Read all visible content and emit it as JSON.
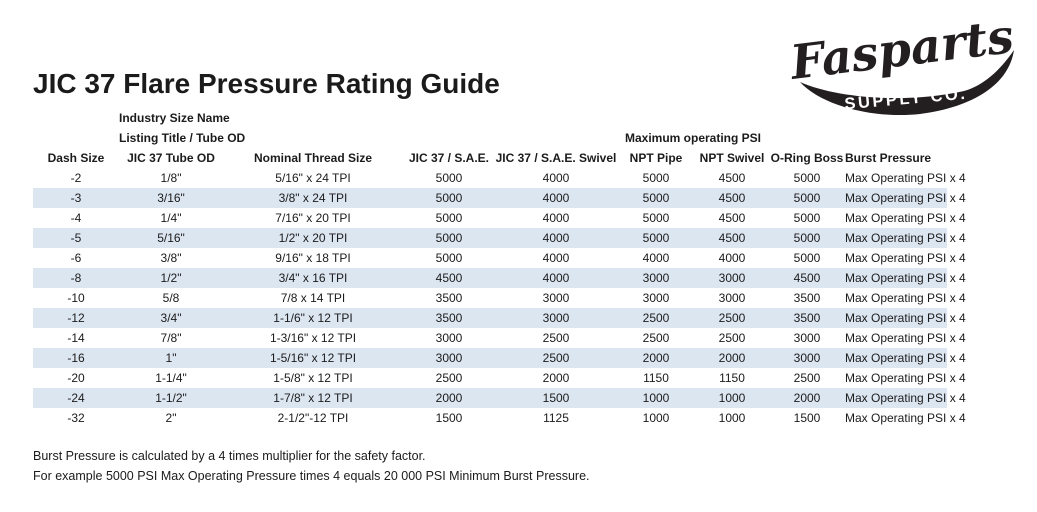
{
  "page": {
    "title": "JIC 37 Flare Pressure Rating Guide"
  },
  "logo": {
    "brand": "Fasparts",
    "subtitle": "SUPPLY CO."
  },
  "table": {
    "group_header_line1": "Industry Size Name",
    "group_header_line2": "Listing Title / Tube OD",
    "psi_group_header": "Maximum operating PSI",
    "columns": [
      "Dash Size",
      "JIC 37 Tube OD",
      "Nominal Thread Size",
      "JIC 37 / S.A.E.",
      "JIC 37 / S.A.E. Swivel",
      "NPT Pipe",
      "NPT Swivel",
      "O-Ring Boss",
      "Burst Pressure"
    ],
    "rows": [
      [
        "-2",
        "1/8\"",
        "5/16\" x 24 TPI",
        "5000",
        "4000",
        "5000",
        "4500",
        "5000",
        "Max Operating PSI x 4"
      ],
      [
        "-3",
        "3/16\"",
        "3/8\" x 24 TPI",
        "5000",
        "4000",
        "5000",
        "4500",
        "5000",
        "Max Operating PSI x 4"
      ],
      [
        "-4",
        "1/4\"",
        "7/16\" x 20 TPI",
        "5000",
        "4000",
        "5000",
        "4500",
        "5000",
        "Max Operating PSI x 4"
      ],
      [
        "-5",
        "5/16\"",
        "1/2\" x 20 TPI",
        "5000",
        "4000",
        "5000",
        "4500",
        "5000",
        "Max Operating PSI x 4"
      ],
      [
        "-6",
        "3/8\"",
        "9/16\" x 18 TPI",
        "5000",
        "4000",
        "4000",
        "4000",
        "5000",
        "Max Operating PSI x 4"
      ],
      [
        "-8",
        "1/2\"",
        "3/4\" x 16 TPI",
        "4500",
        "4000",
        "3000",
        "3000",
        "4500",
        "Max Operating PSI x 4"
      ],
      [
        "-10",
        "5/8",
        "7/8 x 14 TPI",
        "3500",
        "3000",
        "3000",
        "3000",
        "3500",
        "Max Operating PSI x 4"
      ],
      [
        "-12",
        "3/4\"",
        "1-1/6\" x 12 TPI",
        "3500",
        "3000",
        "2500",
        "2500",
        "3500",
        "Max Operating PSI x 4"
      ],
      [
        "-14",
        "7/8\"",
        "1-3/16\" x 12 TPI",
        "3000",
        "2500",
        "2500",
        "2500",
        "3000",
        "Max Operating PSI x 4"
      ],
      [
        "-16",
        "1\"",
        "1-5/16\" x 12 TPI",
        "3000",
        "2500",
        "2000",
        "2000",
        "3000",
        "Max Operating PSI x 4"
      ],
      [
        "-20",
        "1-1/4\"",
        "1-5/8\" x 12 TPI",
        "2500",
        "2000",
        "1150",
        "1150",
        "2500",
        "Max Operating PSI x 4"
      ],
      [
        "-24",
        "1-1/2\"",
        "1-7/8\" x 12 TPI",
        "2000",
        "1500",
        "1000",
        "1000",
        "2000",
        "Max Operating PSI x 4"
      ],
      [
        "-32",
        "2\"",
        "2-1/2\"-12 TPI",
        "1500",
        "1125",
        "1000",
        "1000",
        "1500",
        "Max Operating PSI x 4"
      ]
    ]
  },
  "footer": {
    "line1": "Burst Pressure is calculated by a 4 times multiplier for the safety factor.",
    "line2": "For example 5000 PSI Max Operating Pressure times 4 equals 20 000 PSI Minimum Burst Pressure."
  },
  "colors": {
    "stripe": "#dce6f1",
    "ink": "#1b1b1b",
    "logo_ink": "#231f20"
  }
}
